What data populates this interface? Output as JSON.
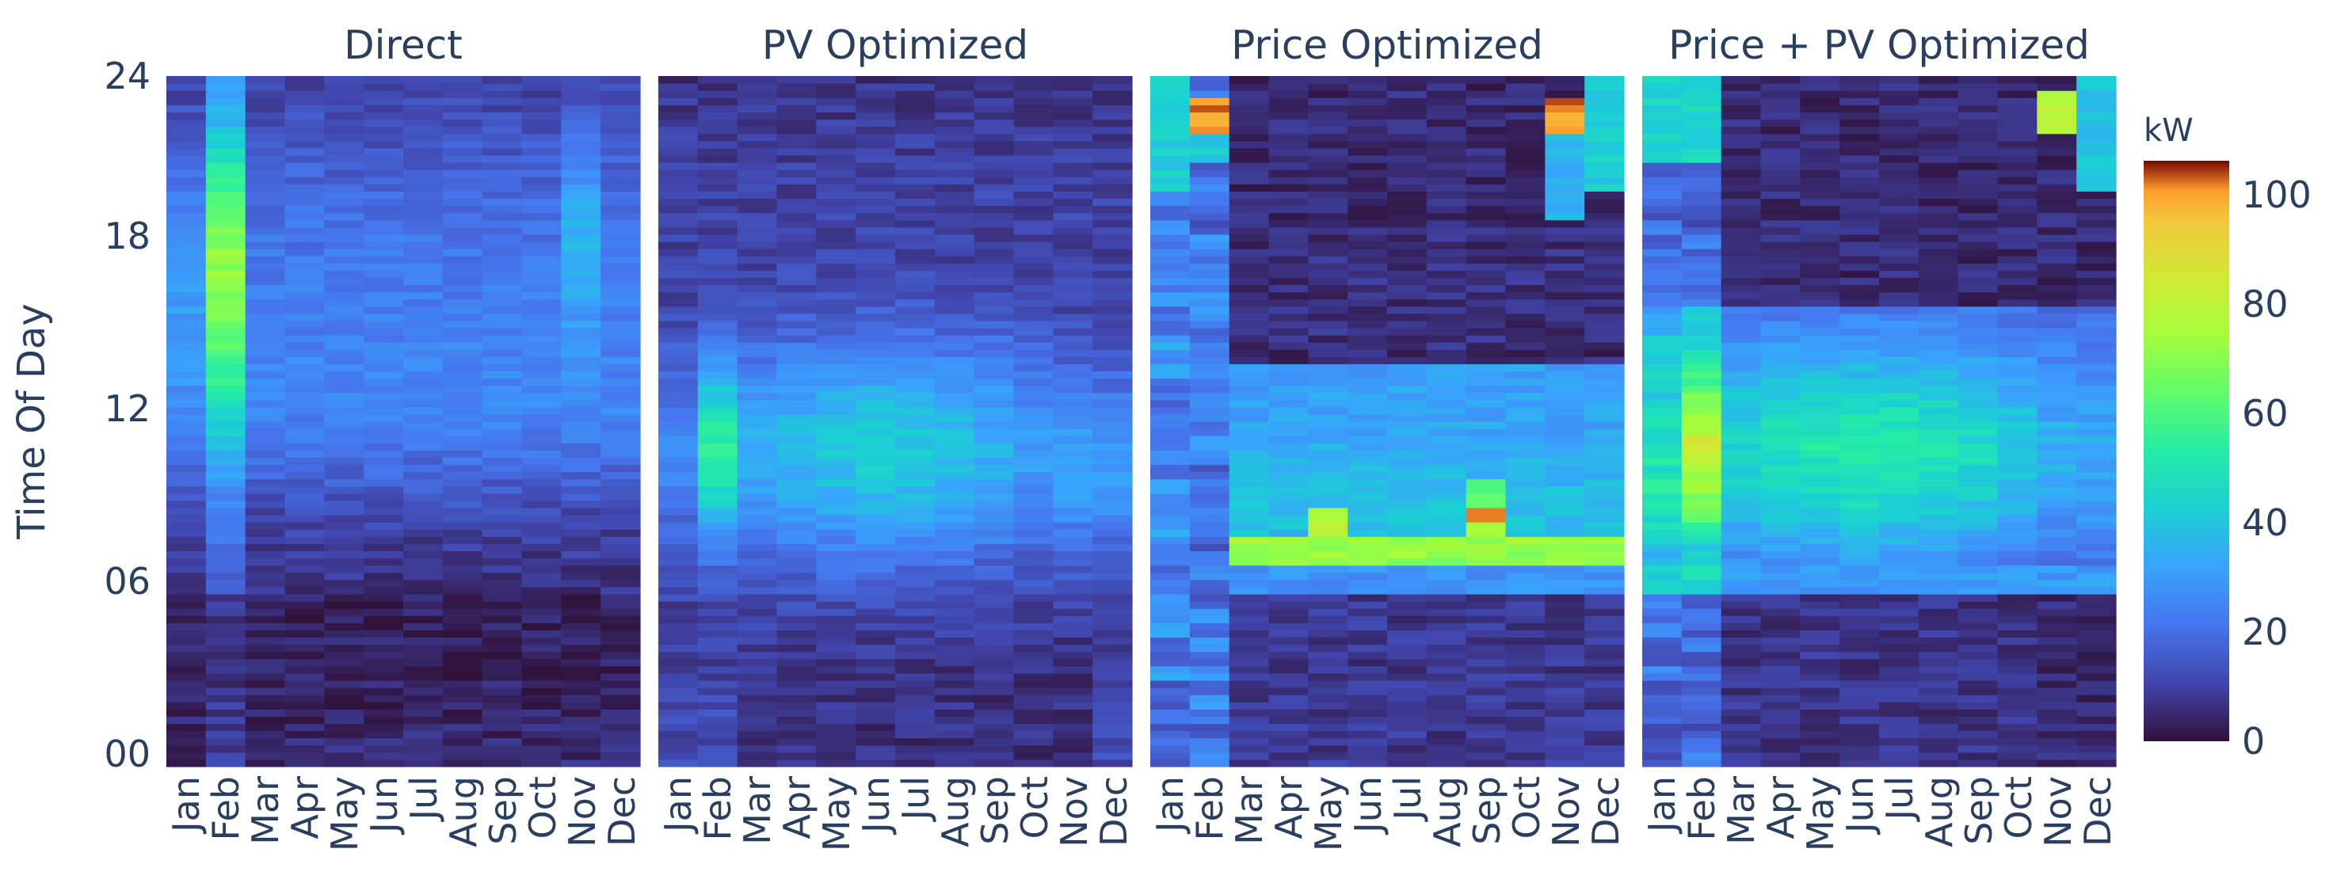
{
  "chart_data": {
    "type": "heatmap",
    "panels": [
      {
        "title": "Direct",
        "profile": "direct"
      },
      {
        "title": "PV Optimized",
        "profile": "pv"
      },
      {
        "title": "Price Optimized",
        "profile": "price"
      },
      {
        "title": "Price + PV Optimized",
        "profile": "pricepv"
      }
    ],
    "x_categories": [
      "Jan",
      "Feb",
      "Mar",
      "Apr",
      "May",
      "Jun",
      "Jul",
      "Aug",
      "Sep",
      "Oct",
      "Nov",
      "Dec"
    ],
    "y_ticks": [
      "00",
      "06",
      "12",
      "18",
      "24"
    ],
    "y_range": [
      0,
      24
    ],
    "ylabel": "Time Of Day",
    "colorbar": {
      "title": "kW",
      "range": [
        0,
        106
      ],
      "ticks": [
        "0",
        "20",
        "40",
        "60",
        "80",
        "100"
      ],
      "colorscale": "turbo"
    }
  }
}
